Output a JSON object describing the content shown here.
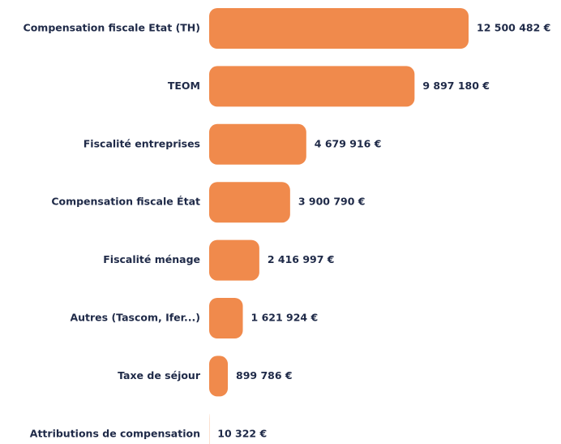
{
  "chart_data": {
    "type": "hbar",
    "categories": [
      "Compensation fiscale Etat (TH)",
      "TEOM",
      "Fiscalité entreprises",
      "Compensation fiscale État",
      "Fiscalité ménage",
      "Autres (Tascom, Ifer...)",
      "Taxe de séjour",
      "Attributions de compensation"
    ],
    "values": [
      12500482,
      9897180,
      4679916,
      3900790,
      2416997,
      1621924,
      899786,
      10322
    ],
    "value_labels": [
      "12 500 482 €",
      "9 897 180 €",
      "4 679 916 €",
      "3 900 790 €",
      "2 416 997 €",
      "1 621 924 €",
      "899 786 €",
      "10 322 €"
    ],
    "color": "#f08a4c"
  }
}
